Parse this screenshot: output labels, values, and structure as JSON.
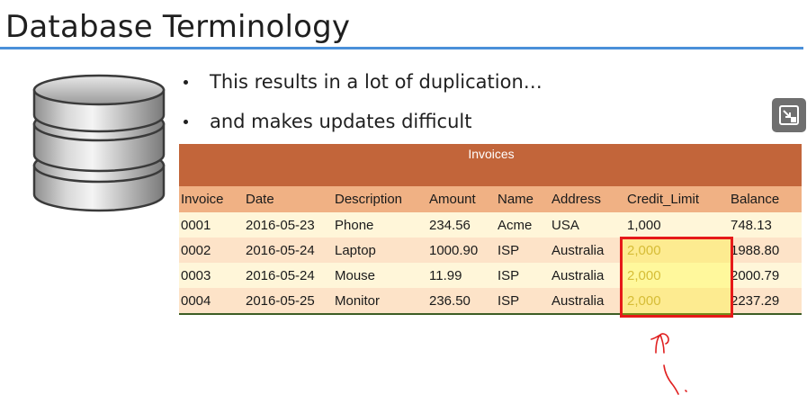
{
  "slide": {
    "title": "Database Terminology",
    "bullets": [
      "This results in a lot of duplication…",
      "and makes updates difficult"
    ]
  },
  "icons": {
    "database": "database-icon",
    "expand": "expand-icon",
    "annotation": "arrow-annotation-icon"
  },
  "colors": {
    "title_rule": "#4a90d9",
    "table_caption_bg": "#c2653a",
    "table_header_bg": "#f0b184",
    "row_light": "#fff6d9",
    "row_dark": "#fde3c8",
    "highlight_border": "#e61919",
    "highlight_fill": "#ffff00",
    "ink_annotation": "#e02020"
  },
  "table": {
    "caption": "Invoices",
    "columns": [
      "Invoice",
      "Date",
      "Description",
      "Amount",
      "Name",
      "Address",
      "Credit_Limit",
      "Balance"
    ],
    "rows": [
      [
        "0001",
        "2016-05-23",
        "Phone",
        "234.56",
        "Acme",
        "USA",
        "1,000",
        "748.13"
      ],
      [
        "0002",
        "2016-05-24",
        "Laptop",
        "1000.90",
        "ISP",
        "Australia",
        "2,000",
        "1988.80"
      ],
      [
        "0003",
        "2016-05-24",
        "Mouse",
        "11.99",
        "ISP",
        "Australia",
        "2,000",
        "2000.79"
      ],
      [
        "0004",
        "2016-05-25",
        "Monitor",
        "236.50",
        "ISP",
        "Australia",
        "2,000",
        "2237.29"
      ]
    ],
    "highlighted_column": "Credit_Limit",
    "highlighted_rows": [
      "0002",
      "0003",
      "0004"
    ]
  }
}
